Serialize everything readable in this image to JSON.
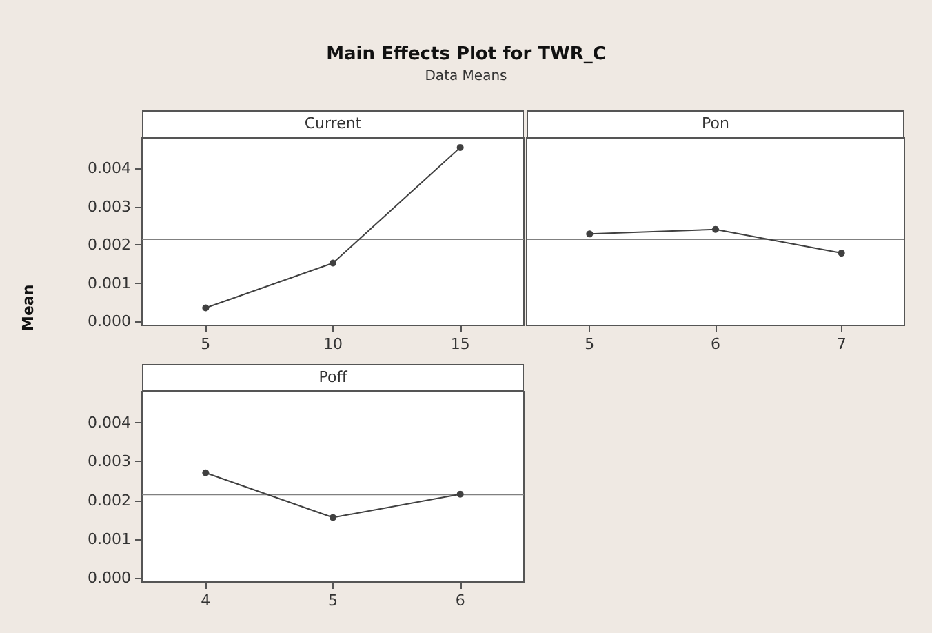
{
  "chart_data": [
    {
      "type": "line",
      "title": "Main Effects Plot for TWR_C",
      "subtitle": "Data Means",
      "ylabel": "Mean",
      "xlabel": "Current",
      "x": [
        5,
        10,
        15
      ],
      "values": [
        0.00036,
        0.00153,
        0.00455
      ],
      "color": "#404040",
      "xlim": [
        2.5,
        17.5
      ],
      "xticks": [
        5,
        10,
        15
      ],
      "ylim": [
        -0.0001,
        0.0048
      ],
      "yticks": [
        {
          "value": 0,
          "label": "0.000"
        },
        {
          "value": 0.001,
          "label": "0.001"
        },
        {
          "value": 0.002,
          "label": "0.002"
        },
        {
          "value": 0.003,
          "label": "0.003"
        },
        {
          "value": 0.004,
          "label": "0.004"
        }
      ],
      "ref_lines": [
        {
          "axis": "y",
          "value": 0.00215,
          "color": "#808080"
        }
      ],
      "marker": "circle"
    },
    {
      "type": "line",
      "xlabel": "Pon",
      "x": [
        5,
        6,
        7
      ],
      "values": [
        0.00229,
        0.00241,
        0.00179
      ],
      "color": "#404040",
      "xlim": [
        4.5,
        7.5
      ],
      "xticks": [
        5,
        6,
        7
      ],
      "ylim": [
        -0.0001,
        0.0048
      ],
      "ref_lines": [
        {
          "axis": "y",
          "value": 0.00215,
          "color": "#808080"
        }
      ],
      "marker": "circle",
      "tick_labels": "x"
    },
    {
      "type": "line",
      "xlabel": "Poff",
      "x": [
        4,
        5,
        6
      ],
      "values": [
        0.00271,
        0.00156,
        0.00216
      ],
      "color": "#404040",
      "xlim": [
        3.5,
        6.5
      ],
      "xticks": [
        4,
        5,
        6
      ],
      "ylim": [
        -0.0001,
        0.0048
      ],
      "yticks": [
        {
          "value": 0,
          "label": "0.000"
        },
        {
          "value": 0.001,
          "label": "0.001"
        },
        {
          "value": 0.002,
          "label": "0.002"
        },
        {
          "value": 0.003,
          "label": "0.003"
        },
        {
          "value": 0.004,
          "label": "0.004"
        }
      ],
      "ref_lines": [
        {
          "axis": "y",
          "value": 0.00215,
          "color": "#808080"
        }
      ],
      "marker": "circle"
    }
  ]
}
